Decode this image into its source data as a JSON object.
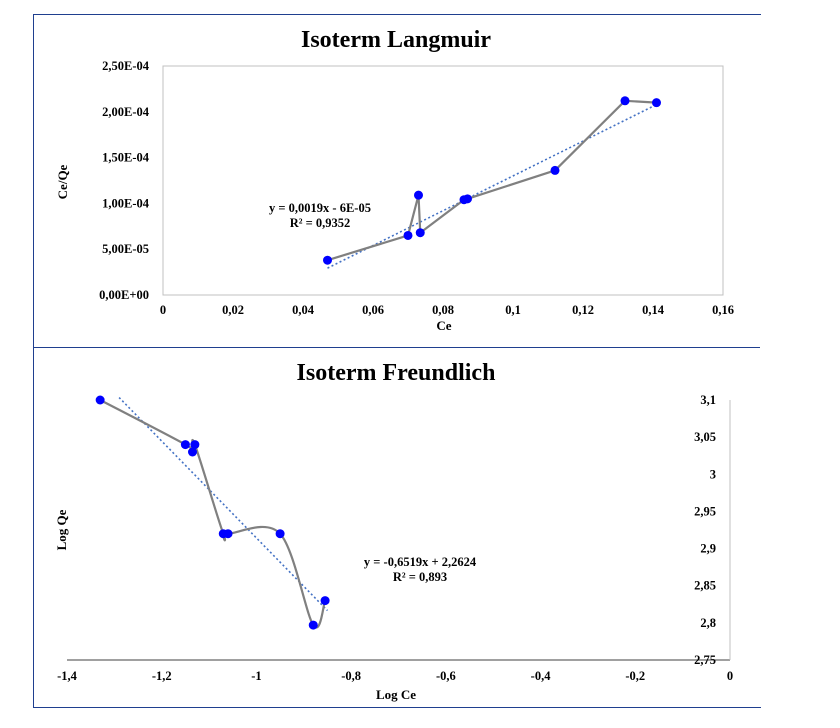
{
  "chart_data": [
    {
      "type": "scatter",
      "title": "Isoterm Langmuir",
      "xlabel": "Ce",
      "ylabel": "Ce/Qe",
      "xlim": [
        0,
        0.16
      ],
      "ylim": [
        0,
        0.00025
      ],
      "x_ticks": [
        0,
        0.02,
        0.04,
        0.06,
        0.08,
        0.1,
        0.12,
        0.14,
        0.16
      ],
      "x_tick_labels": [
        "0",
        "0,02",
        "0,04",
        "0,06",
        "0,08",
        "0,1",
        "0,12",
        "0,14",
        "0,16"
      ],
      "y_ticks": [
        0,
        5e-05,
        0.0001,
        0.00015,
        0.0002,
        0.00025
      ],
      "y_tick_labels": [
        "0,00E+00",
        "5,00E-05",
        "1,00E-04",
        "1,50E-04",
        "2,00E-04",
        "2,50E-04"
      ],
      "series": [
        {
          "x": [
            0.047,
            0.07,
            0.073,
            0.0735,
            0.086,
            0.087,
            0.112,
            0.132,
            0.141
          ],
          "y": [
            3.8e-05,
            6.5e-05,
            0.000109,
            6.8e-05,
            0.000104,
            0.000105,
            0.000136,
            0.000212,
            0.00021
          ],
          "marker_color": "#0000ff",
          "line_color": "#808080"
        }
      ],
      "trendline": {
        "slope": 0.0019,
        "intercept": -6e-05,
        "x_range": [
          0.047,
          0.141
        ],
        "color": "#4472c4",
        "style": "dotted"
      },
      "equation": "y = 0,0019x - 6E-05",
      "r_squared": "R² = 0,9352",
      "grid": false,
      "legend": "none"
    },
    {
      "type": "scatter",
      "title": "Isoterm Freundlich",
      "xlabel": "Log Ce",
      "ylabel": "Log Qe",
      "xlim": [
        -1.4,
        0
      ],
      "ylim": [
        2.75,
        3.1
      ],
      "x_ticks": [
        -1.4,
        -1.2,
        -1.0,
        -0.8,
        -0.6,
        -0.4,
        -0.2,
        0
      ],
      "x_tick_labels": [
        "-1,4",
        "-1,2",
        "-1",
        "-0,8",
        "-0,6",
        "-0,4",
        "-0,2",
        "0"
      ],
      "y_ticks": [
        2.75,
        2.8,
        2.85,
        2.9,
        2.95,
        3.0,
        3.05,
        3.1
      ],
      "y_tick_labels": [
        "2,75",
        "2,8",
        "2,85",
        "2,9",
        "2,95",
        "3",
        "3,05",
        "3,1"
      ],
      "y_axis_position": "right",
      "series": [
        {
          "x": [
            -1.33,
            -1.15,
            -1.135,
            -1.13,
            -1.07,
            -1.06,
            -0.95,
            -0.88,
            -0.855
          ],
          "y": [
            3.1,
            3.04,
            3.03,
            3.04,
            2.92,
            2.92,
            2.92,
            2.797,
            2.83
          ],
          "marker_color": "#0000ff",
          "line_color": "#808080"
        }
      ],
      "trendline": {
        "slope": -0.6519,
        "intercept": 2.2624,
        "x_range": [
          -1.29,
          -0.85
        ],
        "color": "#4472c4",
        "style": "dotted"
      },
      "equation": "y = -0,6519x + 2,2624",
      "r_squared": "R² = 0,893",
      "grid": false,
      "legend": "none"
    }
  ]
}
